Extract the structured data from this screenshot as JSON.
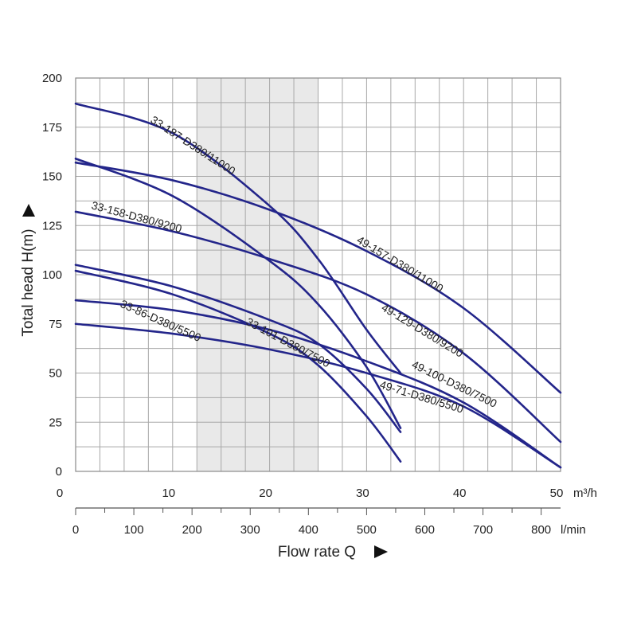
{
  "chart_data": {
    "type": "line",
    "title": "",
    "ylabel": "Total head H(m)",
    "xlabel": "Flow rate Q",
    "x_unit": "m³/h",
    "x2_unit": "l/min",
    "xlim": [
      0,
      50
    ],
    "ylim": [
      0,
      200
    ],
    "x_ticks": [
      10,
      20,
      30,
      40,
      50
    ],
    "y_ticks": [
      0,
      25,
      50,
      75,
      100,
      125,
      150,
      175,
      200
    ],
    "x2_ticks": [
      0,
      100,
      200,
      300,
      400,
      500,
      600,
      700,
      800
    ],
    "grid": true,
    "highlight_band_x": [
      12.5,
      25
    ],
    "series_color": "#23258a",
    "band_color": "#e9e9e9",
    "series": [
      {
        "name": "33-187-D380/11000",
        "x": [
          0,
          10,
          20,
          25,
          30,
          33.5
        ],
        "y": [
          187,
          172,
          135,
          108,
          72,
          50
        ]
      },
      {
        "name": "33-158-D380/9200",
        "x": [
          0,
          10,
          20,
          25,
          30,
          33.5
        ],
        "y": [
          159,
          140,
          107,
          85,
          53,
          22
        ]
      },
      {
        "name": "49-157-D380/11000",
        "x": [
          0,
          10,
          20,
          30,
          40,
          50
        ],
        "y": [
          157,
          148,
          133,
          112,
          83,
          40
        ]
      },
      {
        "name": "49-129-D380/9200",
        "x": [
          0,
          10,
          20,
          30,
          40,
          50
        ],
        "y": [
          132,
          122,
          108,
          90,
          60,
          15
        ]
      },
      {
        "name": "33-101-D380/7500",
        "x": [
          0,
          10,
          20,
          25,
          30,
          33.5
        ],
        "y": [
          105,
          94,
          77,
          65,
          42,
          20
        ]
      },
      {
        "name": "33-86-D380/5500",
        "x": [
          0,
          10,
          20,
          25,
          30,
          33.5
        ],
        "y": [
          102,
          90,
          70,
          54,
          28,
          5
        ]
      },
      {
        "name": "49-100-D380/7500",
        "x": [
          0,
          10,
          20,
          30,
          40,
          50
        ],
        "y": [
          87,
          82,
          72,
          56,
          35,
          2
        ]
      },
      {
        "name": "49-71-D380/5500",
        "x": [
          0,
          10,
          20,
          30,
          40,
          50
        ],
        "y": [
          75,
          70,
          62,
          50,
          33,
          2
        ]
      }
    ]
  }
}
